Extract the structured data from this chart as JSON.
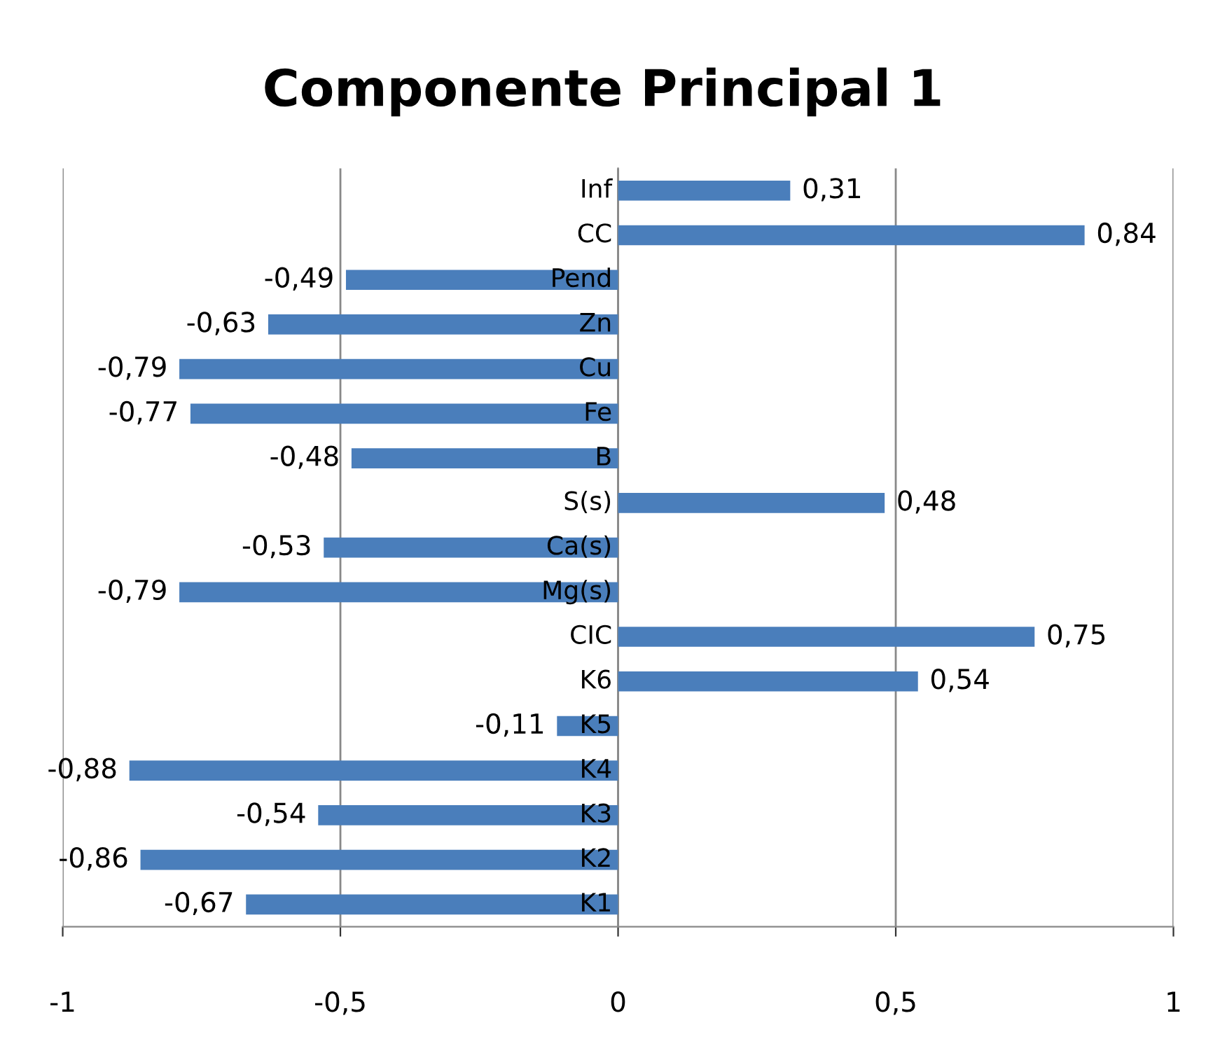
{
  "chart_data": {
    "type": "bar",
    "orientation": "horizontal",
    "title": "Componente Principal 1",
    "categories": [
      "Inf",
      "CC",
      "Pend",
      "Zn",
      "Cu",
      "Fe",
      "B",
      "S(s)",
      "Ca(s)",
      "Mg(s)",
      "CIC",
      "K6",
      "K5",
      "K4",
      "K3",
      "K2",
      "K1"
    ],
    "values": [
      0.31,
      0.84,
      -0.49,
      -0.63,
      -0.79,
      -0.77,
      -0.48,
      0.48,
      -0.53,
      -0.79,
      0.75,
      0.54,
      -0.11,
      -0.88,
      -0.54,
      -0.86,
      -0.67
    ],
    "value_labels": [
      "0,31",
      "0,84",
      "-0,49",
      "-0,63",
      "-0,79",
      "-0,77",
      "-0,48",
      "0,48",
      "-0,53",
      "-0,79",
      "0,75",
      "0,54",
      "-0,11",
      "-0,88",
      "-0,54",
      "-0,86",
      "-0,67"
    ],
    "color": "#4a7ebb",
    "xlim": [
      -1,
      1
    ],
    "xticks": [
      -1,
      {
        "value": -0.5,
        "label": "-0,5"
      },
      0,
      {
        "value": 0.5,
        "label": "0,5"
      },
      1
    ],
    "grid": "x",
    "legend": false
  }
}
